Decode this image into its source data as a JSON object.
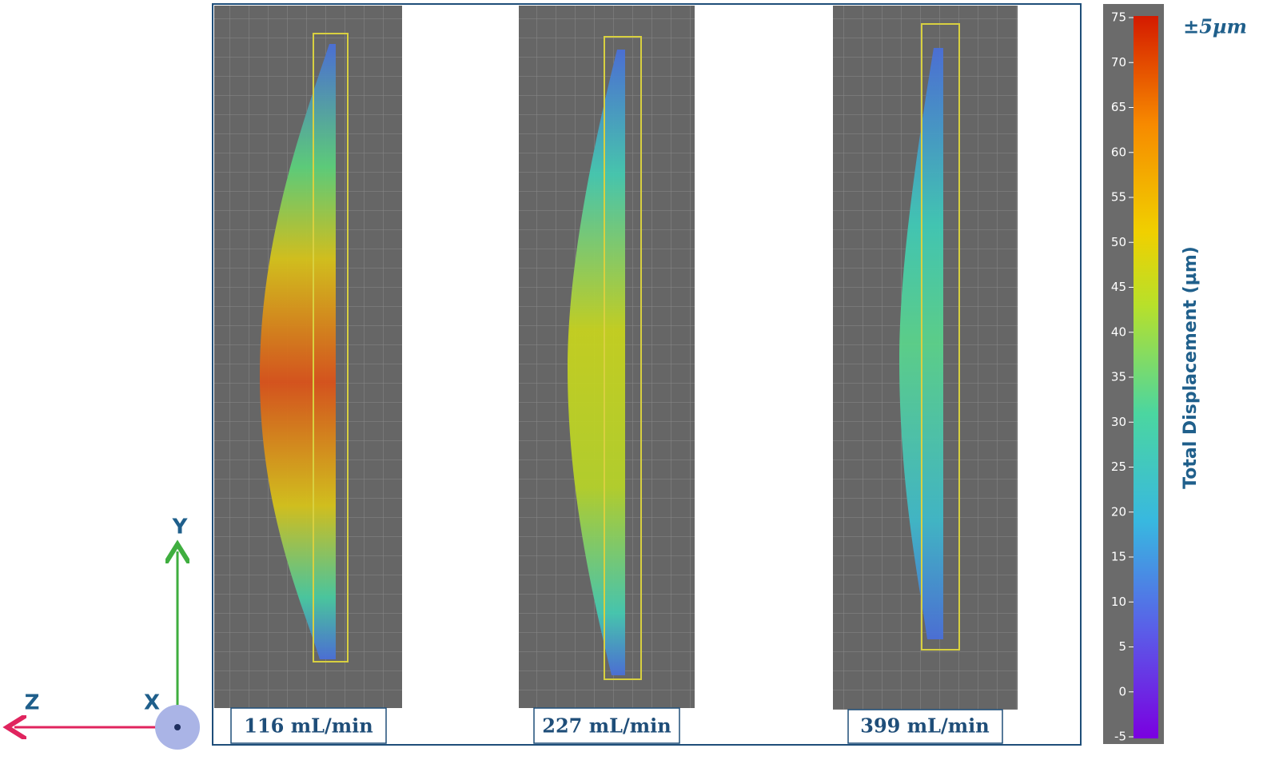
{
  "axes": {
    "y": "Y",
    "z": "Z",
    "x": "X"
  },
  "panels": [
    {
      "label": "116 mL/min"
    },
    {
      "label": "227 mL/min"
    },
    {
      "label": "399 mL/min"
    }
  ],
  "colorbar": {
    "label": "Total Displacement (µm)",
    "annotation": "±5µm",
    "lim": [
      -5,
      75
    ],
    "ticks": [
      75,
      70,
      65,
      60,
      55,
      50,
      45,
      40,
      35,
      30,
      25,
      20,
      15,
      10,
      5,
      0,
      -5
    ]
  }
}
